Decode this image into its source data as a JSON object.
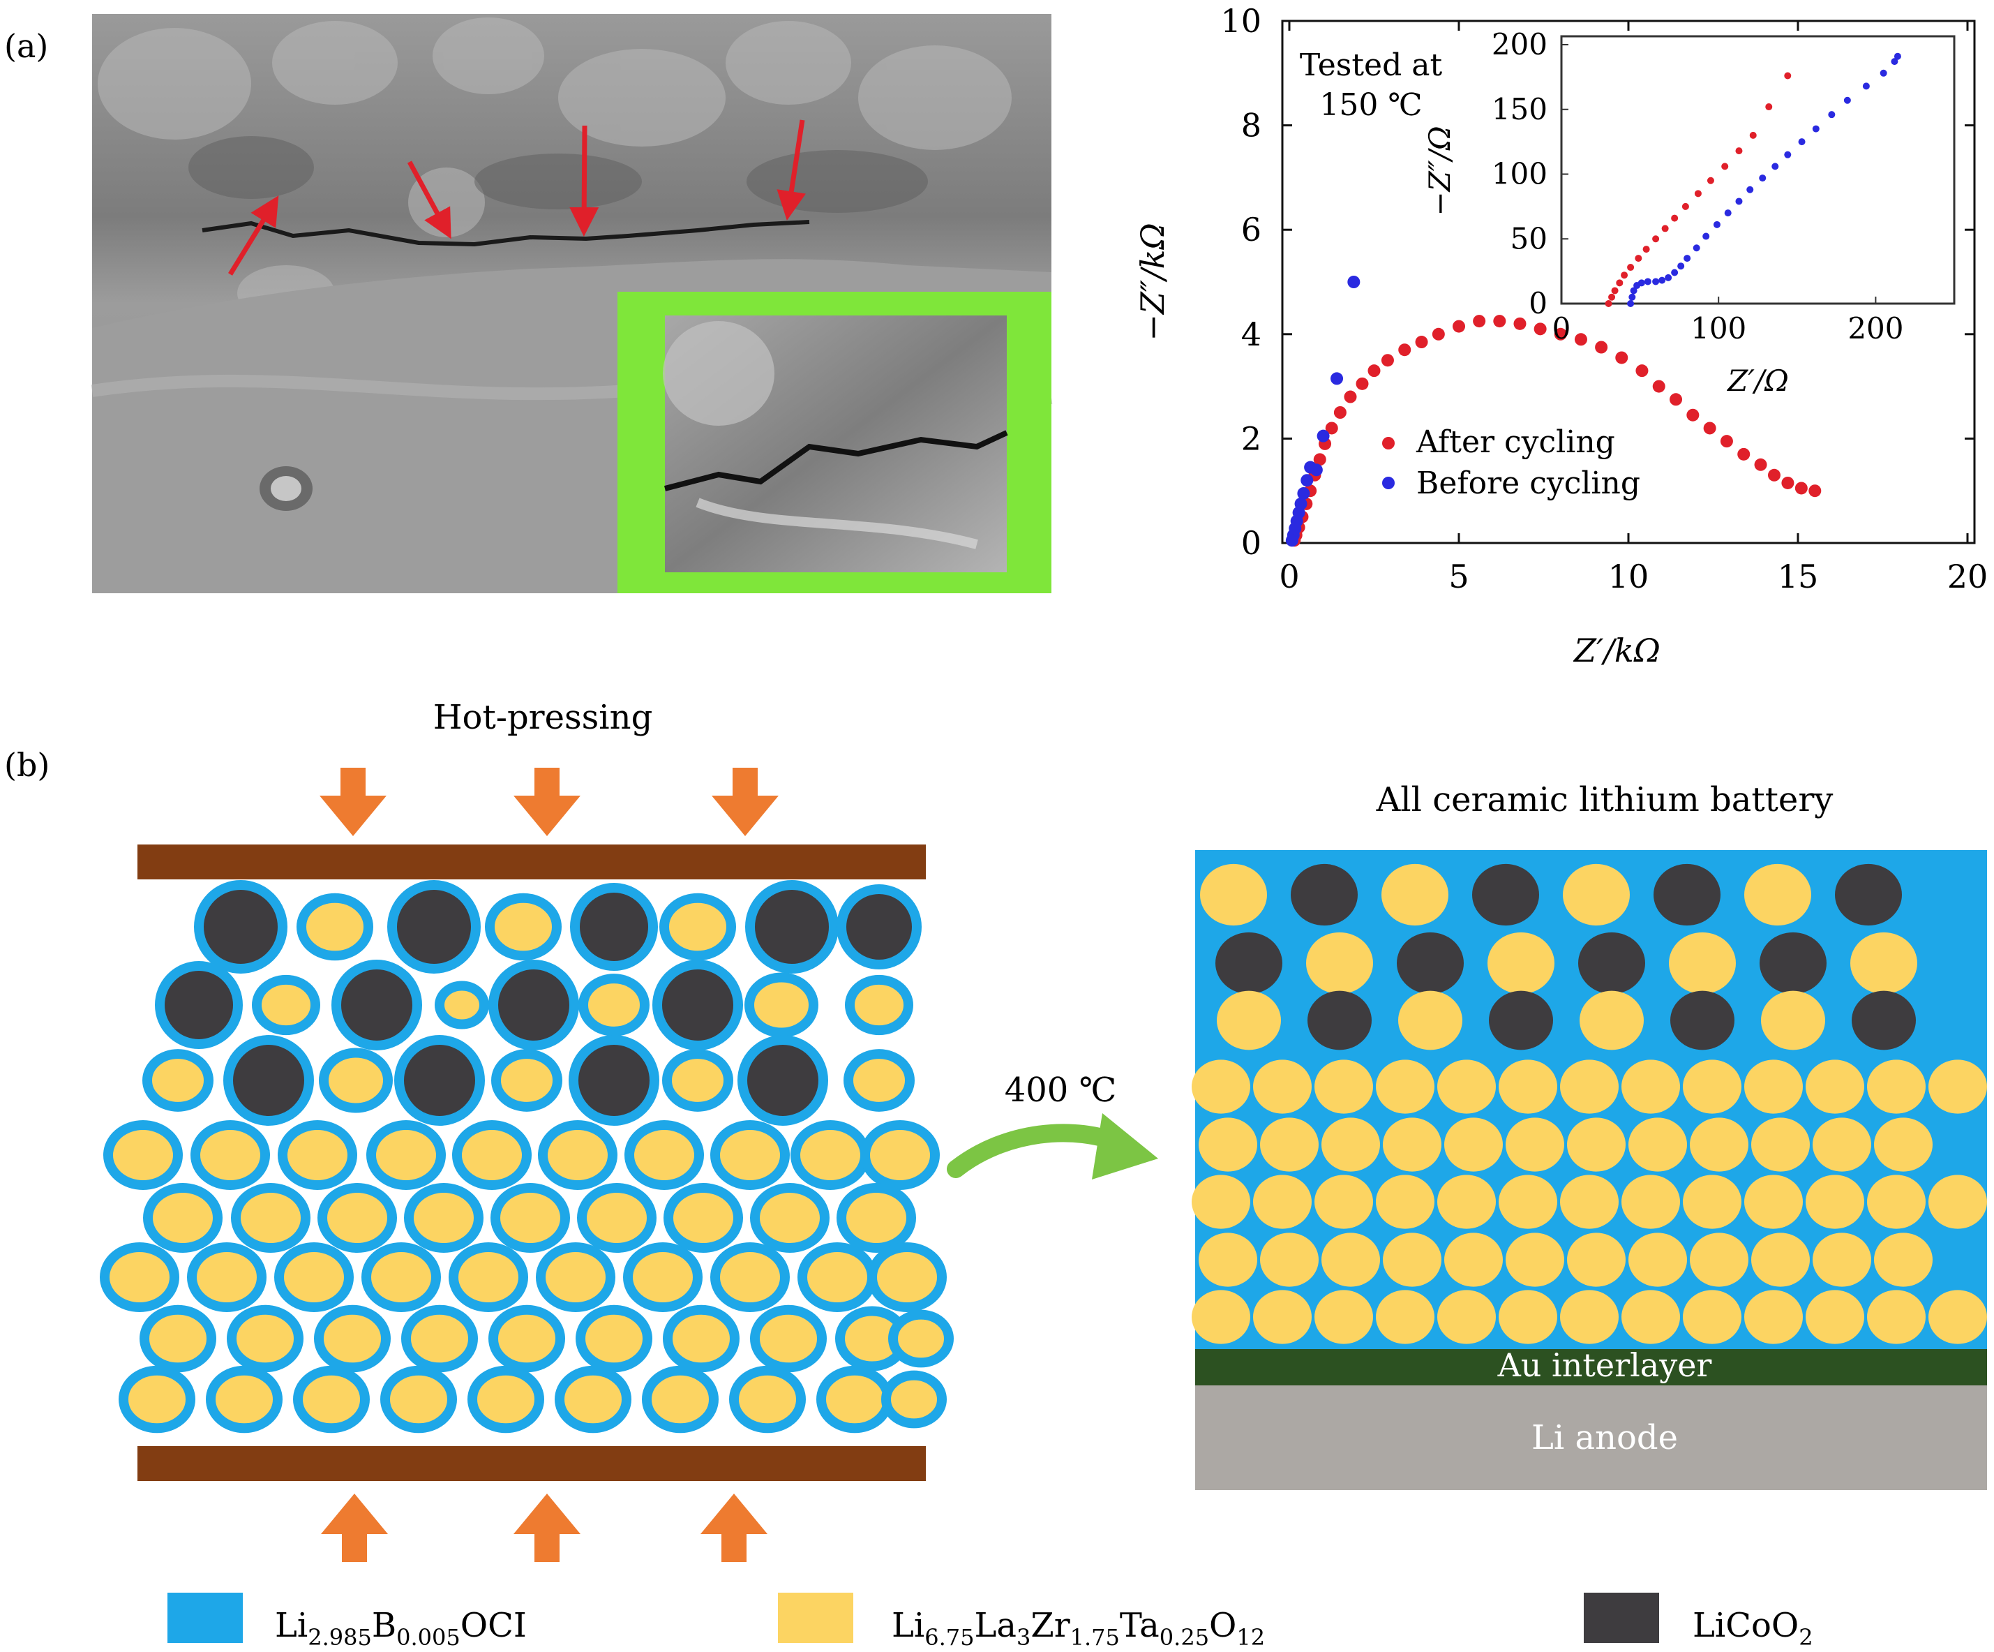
{
  "panel_a": {
    "label": "(a)",
    "sem_image": {
      "description_icon": "sem-micrograph-with-cracks",
      "arrow_color": "#e0202a",
      "inset_frame_color": "#7fe63a"
    }
  },
  "chart_data": {
    "type": "scatter",
    "title": "",
    "annotation": [
      "Tested at",
      "150 ℃"
    ],
    "xlabel": "Z′/kΩ",
    "ylabel": "−Z″/kΩ",
    "xlim": [
      0,
      20
    ],
    "ylim": [
      0,
      10
    ],
    "xticks": [
      "0",
      "5",
      "10",
      "15",
      "20"
    ],
    "yticks": [
      "0",
      "2",
      "4",
      "6",
      "8",
      "10"
    ],
    "legend": {
      "placement": "center",
      "entries": [
        "After cycling",
        "Before cycling"
      ]
    },
    "series": [
      {
        "name": "After cycling",
        "color": "#e0202a",
        "points": [
          [
            0.15,
            0.05
          ],
          [
            0.2,
            0.15
          ],
          [
            0.28,
            0.3
          ],
          [
            0.38,
            0.5
          ],
          [
            0.5,
            0.75
          ],
          [
            0.62,
            1.0
          ],
          [
            0.75,
            1.3
          ],
          [
            0.9,
            1.6
          ],
          [
            1.05,
            1.9
          ],
          [
            1.25,
            2.2
          ],
          [
            1.5,
            2.5
          ],
          [
            1.8,
            2.8
          ],
          [
            2.15,
            3.05
          ],
          [
            2.5,
            3.3
          ],
          [
            2.9,
            3.5
          ],
          [
            3.4,
            3.7
          ],
          [
            3.9,
            3.85
          ],
          [
            4.4,
            4.0
          ],
          [
            5.0,
            4.15
          ],
          [
            5.6,
            4.25
          ],
          [
            6.2,
            4.25
          ],
          [
            6.8,
            4.2
          ],
          [
            7.4,
            4.1
          ],
          [
            8.0,
            4.0
          ],
          [
            8.6,
            3.9
          ],
          [
            9.2,
            3.75
          ],
          [
            9.8,
            3.55
          ],
          [
            10.4,
            3.3
          ],
          [
            10.9,
            3.0
          ],
          [
            11.4,
            2.75
          ],
          [
            11.9,
            2.45
          ],
          [
            12.4,
            2.2
          ],
          [
            12.9,
            1.95
          ],
          [
            13.4,
            1.7
          ],
          [
            13.9,
            1.5
          ],
          [
            14.3,
            1.3
          ],
          [
            14.7,
            1.15
          ],
          [
            15.1,
            1.05
          ],
          [
            15.5,
            1.0
          ]
        ]
      },
      {
        "name": "Before cycling",
        "color": "#2a2ae0",
        "points": [
          [
            0.08,
            0.05
          ],
          [
            0.12,
            0.15
          ],
          [
            0.17,
            0.28
          ],
          [
            0.22,
            0.42
          ],
          [
            0.28,
            0.58
          ],
          [
            0.34,
            0.75
          ],
          [
            0.42,
            0.95
          ],
          [
            0.52,
            1.2
          ],
          [
            0.62,
            1.45
          ],
          [
            0.8,
            1.4
          ],
          [
            1.0,
            2.05
          ],
          [
            1.4,
            3.15
          ],
          [
            1.9,
            5.0
          ]
        ]
      }
    ],
    "inset": {
      "xlabel": "Z′/Ω",
      "ylabel": "−Z″/Ω",
      "xlim": [
        0,
        250
      ],
      "ylim": [
        0,
        200
      ],
      "xticks": [
        "0",
        "100",
        "200"
      ],
      "yticks": [
        "0",
        "50",
        "100",
        "150",
        "200"
      ],
      "series": [
        {
          "name": "After cycling",
          "color": "#e0202a",
          "points": [
            [
              30,
              0
            ],
            [
              32,
              5
            ],
            [
              34,
              10
            ],
            [
              37,
              16
            ],
            [
              40,
              22
            ],
            [
              44,
              28
            ],
            [
              49,
              35
            ],
            [
              54,
              42
            ],
            [
              60,
              50
            ],
            [
              66,
              58
            ],
            [
              72,
              66
            ],
            [
              79,
              75
            ],
            [
              87,
              85
            ],
            [
              95,
              95
            ],
            [
              104,
              106
            ],
            [
              113,
              118
            ],
            [
              122,
              130
            ],
            [
              132,
              152
            ],
            [
              144,
              176
            ]
          ]
        },
        {
          "name": "Before cycling",
          "color": "#2a2ae0",
          "points": [
            [
              44,
              0
            ],
            [
              45,
              5
            ],
            [
              46,
              10
            ],
            [
              48,
              14
            ],
            [
              51,
              16
            ],
            [
              55,
              17
            ],
            [
              60,
              17
            ],
            [
              64,
              18
            ],
            [
              68,
              20
            ],
            [
              72,
              24
            ],
            [
              76,
              29
            ],
            [
              80,
              35
            ],
            [
              86,
              43
            ],
            [
              92,
              52
            ],
            [
              99,
              61
            ],
            [
              106,
              70
            ],
            [
              113,
              79
            ],
            [
              120,
              88
            ],
            [
              128,
              97
            ],
            [
              136,
              106
            ],
            [
              144,
              115
            ],
            [
              153,
              125
            ],
            [
              162,
              135
            ],
            [
              172,
              146
            ],
            [
              182,
              157
            ],
            [
              194,
              168
            ],
            [
              205,
              178
            ],
            [
              212,
              187
            ],
            [
              214,
              191
            ]
          ]
        }
      ]
    }
  },
  "panel_b": {
    "label": "(b)",
    "hot_pressing_label": "Hot-pressing",
    "temperature_label": "400 ℃",
    "battery_title": "All ceramic lithium battery",
    "interlayer_label": "Au interlayer",
    "anode_label": "Li anode",
    "colors": {
      "electrolyte_blue": "#1ea7e8",
      "llzo_yellow": "#fcd462",
      "licoo2_gray": "#3e3c3f",
      "plate_brown": "#823d12",
      "arrow_orange": "#ee7b30",
      "arrow_green": "#7cc544",
      "au_green": "#2c5121",
      "li_gray": "#aca8a4"
    },
    "legend": [
      {
        "main": "Li",
        "sub1": "2.985",
        "mid1": "B",
        "sub2": "0.005",
        "tail": "OCI",
        "swatch": "blue"
      },
      {
        "main": "Li",
        "sub1": "6.75",
        "mid1": "La",
        "sub2": "3",
        "mid2": "Zr",
        "sub3": "1.75",
        "mid3": "Ta",
        "sub4": "0.25",
        "mid4": "O",
        "sub5": "12",
        "swatch": "yellow"
      },
      {
        "main": "LiCoO",
        "sub1": "2",
        "swatch": "gray"
      }
    ]
  }
}
